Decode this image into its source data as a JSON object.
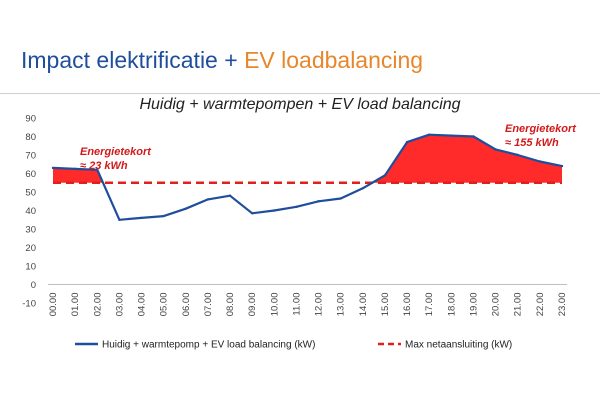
{
  "header": {
    "title_part1": "Impact elektrificatie + ",
    "title_part2": "EV loadbalancing"
  },
  "colors": {
    "title_blue": "#1f4e9c",
    "title_orange": "#e8862a",
    "series_line": "#1f4e9c",
    "max_line": "#e0201c",
    "shortage_fill": "#ff2a2a"
  },
  "chart_data": {
    "type": "line",
    "title": "Huidig + warmtepompen + EV load balancing",
    "xlabel": "",
    "ylabel": "",
    "ylim": [
      -10,
      90
    ],
    "yticks": [
      -10,
      0,
      10,
      20,
      30,
      40,
      50,
      60,
      70,
      80,
      90
    ],
    "grid": false,
    "legend_position": "bottom",
    "x": [
      "00.00",
      "01.00",
      "02.00",
      "03.00",
      "04.00",
      "05.00",
      "06.00",
      "07.00",
      "08.00",
      "09.00",
      "10.00",
      "11.00",
      "12.00",
      "13.00",
      "14.00",
      "15.00",
      "16.00",
      "17.00",
      "18.00",
      "19.00",
      "20.00",
      "21.00",
      "22.00",
      "23.00"
    ],
    "series": [
      {
        "name": "Huidig + warmtepomp + EV load balancing (kW)",
        "style": "solid",
        "values": [
          63,
          62.5,
          62,
          35,
          36,
          37,
          41,
          46,
          48,
          38.5,
          40,
          42,
          45,
          46.5,
          52,
          59,
          77,
          81,
          80.5,
          80,
          73,
          70,
          66.5,
          64
        ]
      },
      {
        "name": "Max netaansluiting (kW)",
        "style": "dashed",
        "values": [
          55,
          55,
          55,
          55,
          55,
          55,
          55,
          55,
          55,
          55,
          55,
          55,
          55,
          55,
          55,
          55,
          55,
          55,
          55,
          55,
          55,
          55,
          55,
          55
        ]
      }
    ],
    "annotations": [
      {
        "line1": "Energietekort",
        "line2": "≈ 23 kWh"
      },
      {
        "line1": "Energietekort",
        "line2": "≈ 155 kWh"
      }
    ]
  }
}
